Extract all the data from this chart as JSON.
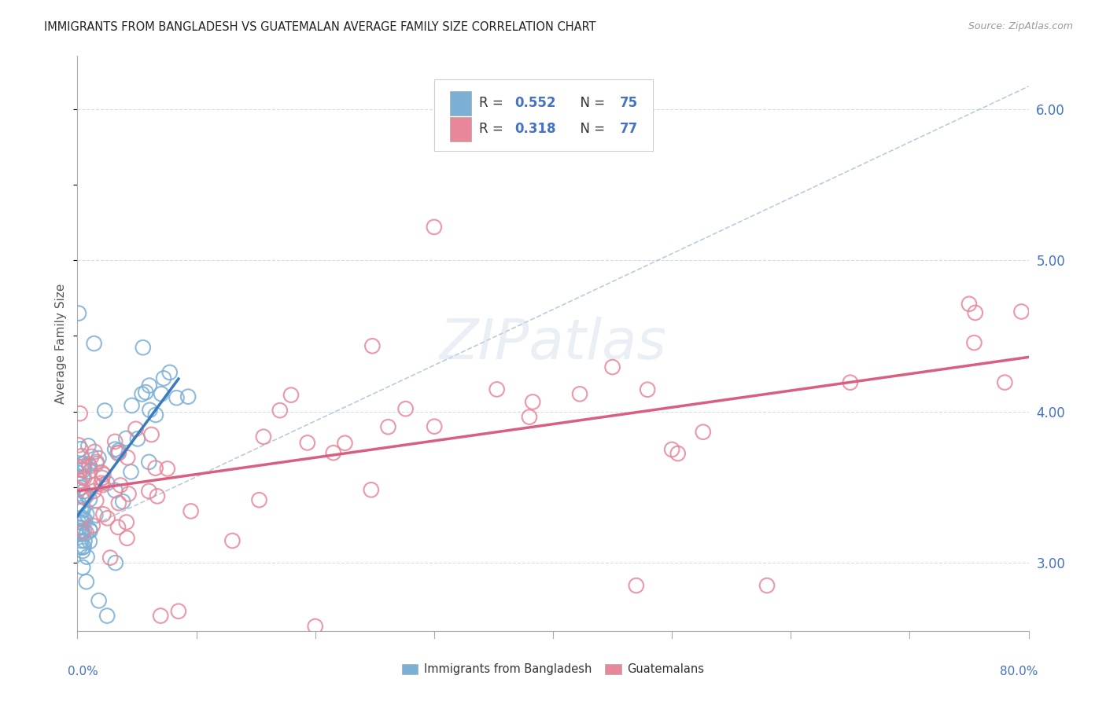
{
  "title": "IMMIGRANTS FROM BANGLADESH VS GUATEMALAN AVERAGE FAMILY SIZE CORRELATION CHART",
  "source": "Source: ZipAtlas.com",
  "ylabel": "Average Family Size",
  "bangladesh_R": 0.552,
  "bangladesh_N": 75,
  "guatemalan_R": 0.318,
  "guatemalan_N": 77,
  "bangladesh_color": "#7bafd4",
  "guatemalan_color": "#e8879a",
  "regression_blue_color": "#3a7abf",
  "regression_pink_color": "#d95f80",
  "dashed_line_color": "#a8c0d8",
  "background_color": "#ffffff",
  "legend_box_color": "#4472c4",
  "ylim_low": 2.55,
  "ylim_high": 6.35,
  "xlim_low": 0,
  "xlim_high": 80,
  "yticks": [
    3.0,
    4.0,
    5.0,
    6.0
  ],
  "grid_color": "#d8dce0",
  "watermark": "ZIPatlas"
}
